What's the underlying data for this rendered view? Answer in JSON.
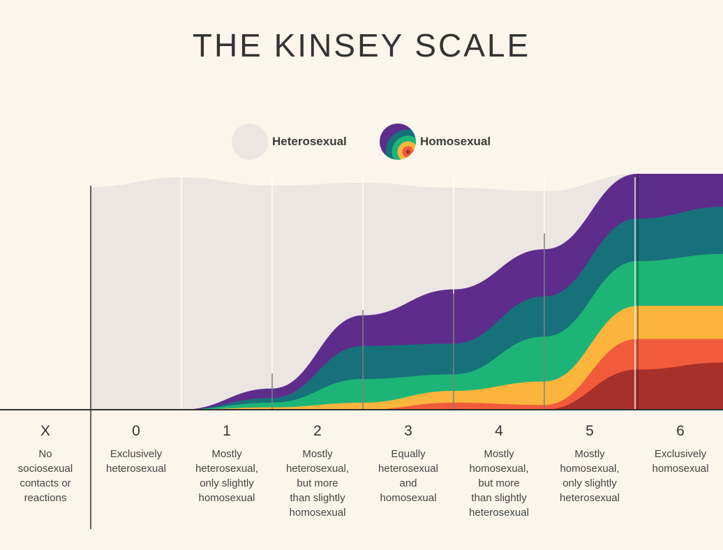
{
  "title": "THE KINSEY SCALE",
  "legend": {
    "heterosexual_label": "Heterosexual",
    "homosexual_label": "Homosexual"
  },
  "colors": {
    "background": "#fbf5ec",
    "heterosexual": "#ece6e2",
    "homosexual_bands": [
      "#5e2d8c",
      "#17717a",
      "#1db577",
      "#fbb53c",
      "#f15b3c",
      "#a8302a"
    ],
    "axis": "#2e2e2e"
  },
  "chart_data": {
    "type": "area",
    "title": "THE KINSEY SCALE",
    "xlabel": "",
    "ylabel": "",
    "legend_position": "top-center",
    "categories": [
      {
        "code": "X",
        "description": [
          "No",
          "sociosexual",
          "contacts or",
          "reactions"
        ]
      },
      {
        "code": "0",
        "description": [
          "Exclusively",
          "heterosexual"
        ]
      },
      {
        "code": "1",
        "description": [
          "Mostly",
          "heterosexual,",
          "only slightly",
          "homosexual"
        ]
      },
      {
        "code": "2",
        "description": [
          "Mostly",
          "heterosexual,",
          "but more",
          "than slightly",
          "homosexual"
        ]
      },
      {
        "code": "3",
        "description": [
          "Equally",
          "heterosexual",
          "and",
          "homosexual"
        ]
      },
      {
        "code": "4",
        "description": [
          "Mostly",
          "homosexual,",
          "but more",
          "than slightly",
          "heterosexual"
        ]
      },
      {
        "code": "5",
        "description": [
          "Mostly",
          "homosexual,",
          "only slightly",
          "heterosexual"
        ]
      },
      {
        "code": "6",
        "description": [
          "Exclusively",
          "homosexual"
        ]
      }
    ],
    "x": [
      0,
      1,
      2,
      3,
      4,
      5,
      6
    ],
    "series": [
      {
        "name": "Heterosexual",
        "values": [
          1.0,
          1.0,
          1.0,
          1.0,
          1.0,
          1.0,
          1.0
        ]
      },
      {
        "name": "Homosexual",
        "values": [
          0.0,
          0.09,
          0.4,
          0.51,
          0.68,
          1.0,
          1.0
        ]
      }
    ],
    "homosexual_band_levels": [
      [
        0,
        0.09,
        0.4,
        0.51,
        0.68,
        1.0,
        1.0
      ],
      [
        0,
        0.05,
        0.27,
        0.28,
        0.48,
        0.81,
        0.86
      ],
      [
        0,
        0.03,
        0.13,
        0.15,
        0.31,
        0.63,
        0.66
      ],
      [
        0,
        0.01,
        0.03,
        0.08,
        0.12,
        0.44,
        0.44
      ],
      [
        0,
        0.0,
        0.0,
        0.03,
        0.02,
        0.3,
        0.3
      ],
      [
        0,
        0.0,
        0.0,
        0.0,
        0.0,
        0.17,
        0.2
      ]
    ],
    "ylim": [
      0,
      1
    ],
    "grid": false
  }
}
